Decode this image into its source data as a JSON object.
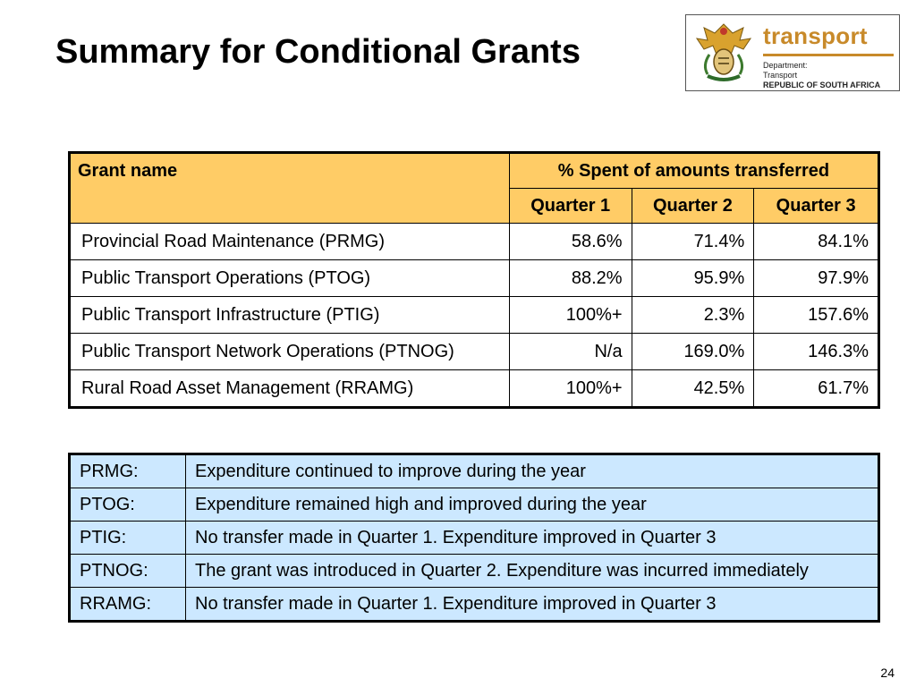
{
  "title": "Summary for Conditional Grants",
  "logo": {
    "brand": "transport",
    "line1": "Department:",
    "line2": "Transport",
    "line3": "REPUBLIC OF SOUTH AFRICA",
    "accent": "#c88a2a"
  },
  "grants_table": {
    "header_grant": "Grant name",
    "header_spent": "% Spent of amounts transferred",
    "quarters": [
      "Quarter 1",
      "Quarter 2",
      "Quarter 3"
    ],
    "rows": [
      {
        "name": "Provincial Road Maintenance (PRMG)",
        "q1": "58.6%",
        "q2": "71.4%",
        "q3": "84.1%"
      },
      {
        "name": "Public Transport Operations (PTOG)",
        "q1": "88.2%",
        "q2": "95.9%",
        "q3": "97.9%"
      },
      {
        "name": "Public Transport Infrastructure (PTIG)",
        "q1": "100%+",
        "q2": "2.3%",
        "q3": "157.6%"
      },
      {
        "name": "Public Transport Network Operations (PTNOG)",
        "q1": "N/a",
        "q2": "169.0%",
        "q3": "146.3%"
      },
      {
        "name": "Rural Road Asset Management (RRAMG)",
        "q1": "100%+",
        "q2": "42.5%",
        "q3": "61.7%"
      }
    ],
    "header_color": "#ffcc66"
  },
  "notes_table": {
    "rows": [
      {
        "key": "PRMG:",
        "text": "Expenditure continued to improve during the year"
      },
      {
        "key": "PTOG:",
        "text": "Expenditure remained high and improved during the year"
      },
      {
        "key": "PTIG:",
        "text": "No transfer made in Quarter 1. Expenditure improved in Quarter 3"
      },
      {
        "key": "PTNOG:",
        "text": "The grant was introduced in Quarter 2. Expenditure was incurred immediately"
      },
      {
        "key": "RRAMG:",
        "text": "No transfer made in Quarter 1. Expenditure improved in Quarter 3"
      }
    ],
    "background": "#cce8ff"
  },
  "page_number": "24"
}
